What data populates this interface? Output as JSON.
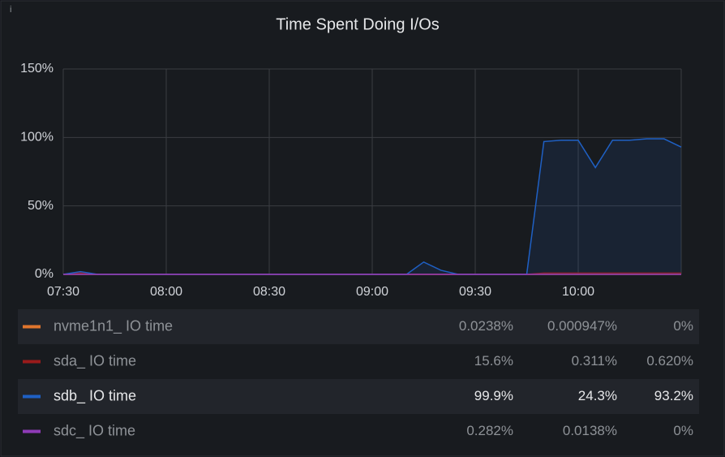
{
  "chart_data": {
    "type": "line",
    "title": "Time Spent Doing I/Os",
    "x": [
      "07:30",
      "07:35",
      "07:40",
      "07:45",
      "07:50",
      "07:55",
      "08:00",
      "08:05",
      "08:10",
      "08:15",
      "08:20",
      "08:25",
      "08:30",
      "08:35",
      "08:40",
      "08:45",
      "08:50",
      "08:55",
      "09:00",
      "09:05",
      "09:10",
      "09:15",
      "09:20",
      "09:25",
      "09:30",
      "09:35",
      "09:40",
      "09:45",
      "09:50",
      "09:55",
      "10:00",
      "10:05",
      "10:10",
      "10:15",
      "10:20",
      "10:25",
      "10:30"
    ],
    "xlim": [
      "07:30",
      "10:30"
    ],
    "xticks": [
      "07:30",
      "08:00",
      "08:30",
      "09:00",
      "09:30",
      "10:00"
    ],
    "ylim": [
      0,
      150
    ],
    "yticks": [
      {
        "value": 0,
        "label": "0%"
      },
      {
        "value": 50,
        "label": "50%"
      },
      {
        "value": 100,
        "label": "100%"
      },
      {
        "value": 150,
        "label": "150%"
      }
    ],
    "grid": true,
    "series": [
      {
        "name": "nvme1n1_ IO time",
        "color": "#e0752d",
        "values": [
          0,
          0,
          0,
          0,
          0,
          0,
          0,
          0,
          0,
          0,
          0,
          0,
          0,
          0,
          0,
          0,
          0,
          0,
          0,
          0,
          0,
          0,
          0,
          0,
          0,
          0,
          0,
          0,
          0,
          0,
          0,
          0,
          0,
          0,
          0,
          0,
          0
        ],
        "stats": [
          "0.0238%",
          "0.000947%",
          "0%"
        ]
      },
      {
        "name": "sda_ IO time",
        "color": "#9a1b1b",
        "values": [
          0,
          1,
          0,
          0,
          0,
          0,
          0,
          0,
          0,
          0,
          0,
          0,
          0,
          0,
          0,
          0,
          0,
          0,
          0,
          0,
          0,
          0,
          0,
          0,
          0,
          0,
          0,
          0,
          1,
          1,
          1,
          1,
          1,
          1,
          1,
          1,
          1
        ],
        "stats": [
          "15.6%",
          "0.311%",
          "0.620%"
        ]
      },
      {
        "name": "sdb_ IO time",
        "color": "#1f60c4",
        "values": [
          0,
          2,
          0,
          0,
          0,
          0,
          0,
          0,
          0,
          0,
          0,
          0,
          0,
          0,
          0,
          0,
          0,
          0,
          0,
          0,
          0,
          9,
          3,
          0,
          0,
          0,
          0,
          0,
          97,
          98,
          98,
          78,
          98,
          98,
          99,
          99,
          93
        ],
        "stats": [
          "99.9%",
          "24.3%",
          "93.2%"
        ]
      },
      {
        "name": "sdc_ IO time",
        "color": "#8f3bb8",
        "values": [
          0,
          0,
          0,
          0,
          0,
          0,
          0,
          0,
          0,
          0,
          0,
          0,
          0,
          0,
          0,
          0,
          0,
          0,
          0,
          0,
          0,
          0,
          0,
          0,
          0,
          0,
          0,
          0,
          0,
          0,
          0,
          0,
          0,
          0,
          0,
          0,
          0
        ],
        "stats": [
          "0.282%",
          "0.0138%",
          "0%"
        ]
      }
    ]
  }
}
